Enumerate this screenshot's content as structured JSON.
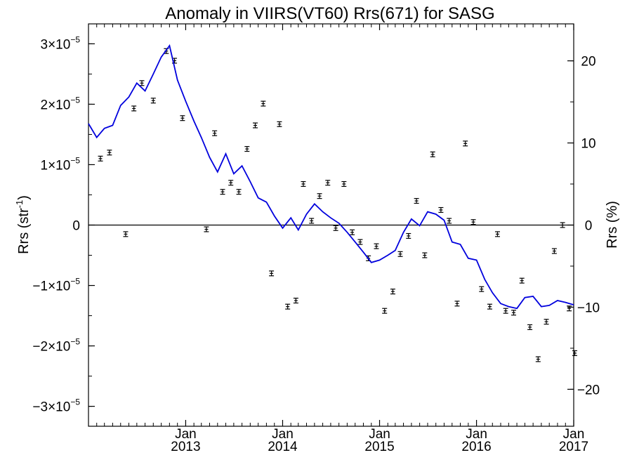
{
  "chart_data": {
    "type": "line",
    "title": "Anomaly in VIIRS(VT60) Rrs(671) for SASG",
    "ylabel": "Rrs (str",
    "ylabel_sup": "-1",
    "ylabel_close": ")",
    "y2label": "Rrs (%)",
    "xlim": [
      "2012-01-01",
      "2017-01-01"
    ],
    "ylim": [
      -3.33e-05,
      3.33e-05
    ],
    "y2lim": [
      -24.5,
      24.5
    ],
    "grid": false,
    "zero_line": true,
    "colors": {
      "model_line": "#0000dd",
      "observations": "#000000",
      "zero_line": "#000000"
    },
    "x_ticks": [
      {
        "date": "2013-01-01",
        "label_top": "Jan",
        "label_bottom": "2013"
      },
      {
        "date": "2014-01-01",
        "label_top": "Jan",
        "label_bottom": "2014"
      },
      {
        "date": "2015-01-01",
        "label_top": "Jan",
        "label_bottom": "2015"
      },
      {
        "date": "2016-01-01",
        "label_top": "Jan",
        "label_bottom": "2016"
      },
      {
        "date": "2017-01-01",
        "label_top": "Jan",
        "label_bottom": "2017"
      }
    ],
    "y_ticks": [
      {
        "value": 3e-05,
        "mantissa": "3×10",
        "exponent": "−5"
      },
      {
        "value": 2e-05,
        "mantissa": "2×10",
        "exponent": "−5"
      },
      {
        "value": 1e-05,
        "mantissa": "1×10",
        "exponent": "−5"
      },
      {
        "value": 0,
        "mantissa": "0",
        "exponent": ""
      },
      {
        "value": -1e-05,
        "mantissa": "−1×10",
        "exponent": "−5"
      },
      {
        "value": -2e-05,
        "mantissa": "−2×10",
        "exponent": "−5"
      },
      {
        "value": -3e-05,
        "mantissa": "−3×10",
        "exponent": "−5"
      }
    ],
    "y2_ticks": [
      {
        "value": 20,
        "label": "20"
      },
      {
        "value": 10,
        "label": "10"
      },
      {
        "value": 0,
        "label": "0"
      },
      {
        "value": -10,
        "label": "−10"
      },
      {
        "value": -20,
        "label": "−20"
      }
    ],
    "series": [
      {
        "kind": "line",
        "x": [
          "2012-01-01",
          "2012-02-01",
          "2012-03-01",
          "2012-04-01",
          "2012-05-01",
          "2012-06-01",
          "2012-07-01",
          "2012-08-01",
          "2012-09-01",
          "2012-10-01",
          "2012-11-01",
          "2012-12-01",
          "2013-01-01",
          "2013-02-01",
          "2013-03-01",
          "2013-04-01",
          "2013-05-01",
          "2013-06-01",
          "2013-07-01",
          "2013-08-01",
          "2013-09-01",
          "2013-10-01",
          "2013-11-01",
          "2013-12-01",
          "2014-01-01",
          "2014-02-01",
          "2014-03-01",
          "2014-04-01",
          "2014-05-01",
          "2014-06-01",
          "2014-07-01",
          "2014-08-01",
          "2014-09-01",
          "2014-10-01",
          "2014-11-01",
          "2014-12-01",
          "2015-01-01",
          "2015-02-01",
          "2015-03-01",
          "2015-04-01",
          "2015-05-01",
          "2015-06-01",
          "2015-07-01",
          "2015-08-01",
          "2015-09-01",
          "2015-10-01",
          "2015-11-01",
          "2015-12-01",
          "2016-01-01",
          "2016-02-01",
          "2016-03-01",
          "2016-04-01",
          "2016-05-01",
          "2016-06-01",
          "2016-07-01",
          "2016-08-01",
          "2016-09-01",
          "2016-10-01",
          "2016-11-01",
          "2016-12-01",
          "2017-01-01"
        ],
        "y": [
          1.68e-05,
          1.45e-05,
          1.6e-05,
          1.65e-05,
          1.98e-05,
          2.12e-05,
          2.35e-05,
          2.22e-05,
          2.5e-05,
          2.78e-05,
          2.97e-05,
          2.4e-05,
          2.05e-05,
          1.72e-05,
          1.45e-05,
          1.12e-05,
          8.8e-06,
          1.18e-05,
          8.5e-06,
          9.8e-06,
          7.2e-06,
          4.5e-06,
          3.8e-06,
          1.5e-06,
          -5e-07,
          1.2e-06,
          -8e-07,
          1.8e-06,
          3.5e-06,
          2.2e-06,
          1.2e-06,
          3e-07,
          -1.2e-06,
          -2.8e-06,
          -4.5e-06,
          -6.2e-06,
          -5.8e-06,
          -5e-06,
          -4.2e-06,
          -1.2e-06,
          1e-06,
          -1e-07,
          2.2e-06,
          1.8e-06,
          8e-07,
          -2.8e-06,
          -3.2e-06,
          -5.5e-06,
          -5.8e-06,
          -9e-06,
          -1.12e-05,
          -1.3e-05,
          -1.35e-05,
          -1.38e-05,
          -1.2e-05,
          -1.18e-05,
          -1.35e-05,
          -1.33e-05,
          -1.25e-05,
          -1.28e-05,
          -1.32e-05
        ]
      },
      {
        "kind": "errorbar",
        "x": [
          "2012-02-15",
          "2012-03-20",
          "2012-05-20",
          "2012-06-20",
          "2012-07-20",
          "2012-09-01",
          "2012-10-20",
          "2012-11-20",
          "2012-12-20",
          "2013-03-20",
          "2013-04-20",
          "2013-05-20",
          "2013-06-20",
          "2013-07-20",
          "2013-08-20",
          "2013-09-20",
          "2013-10-20",
          "2013-11-20",
          "2013-12-20",
          "2014-01-20",
          "2014-02-20",
          "2014-03-20",
          "2014-04-20",
          "2014-05-20",
          "2014-06-20",
          "2014-07-20",
          "2014-08-20",
          "2014-09-20",
          "2014-10-20",
          "2014-11-20",
          "2014-12-20",
          "2015-01-20",
          "2015-02-20",
          "2015-03-20",
          "2015-04-20",
          "2015-05-20",
          "2015-06-20",
          "2015-07-20",
          "2015-08-20",
          "2015-09-20",
          "2015-10-20",
          "2015-11-20",
          "2015-12-20",
          "2016-01-20",
          "2016-02-20",
          "2016-03-20",
          "2016-04-20",
          "2016-05-20",
          "2016-06-20",
          "2016-07-20",
          "2016-08-20",
          "2016-09-20",
          "2016-10-20",
          "2016-11-20",
          "2016-12-15",
          "2017-01-05"
        ],
        "y": [
          1.1e-05,
          1.2e-05,
          -1.5e-06,
          1.93e-05,
          2.35e-05,
          2.06e-05,
          2.88e-05,
          2.72e-05,
          1.77e-05,
          -7e-07,
          1.52e-05,
          5.5e-06,
          7e-06,
          5.5e-06,
          1.26e-05,
          1.65e-05,
          2.01e-05,
          -8e-06,
          1.67e-05,
          -1.35e-05,
          -1.25e-05,
          6.8e-06,
          7e-07,
          4.8e-06,
          7e-06,
          -5e-07,
          6.8e-06,
          -1.2e-06,
          -2.8e-06,
          -5.5e-06,
          -3.5e-06,
          -1.42e-05,
          -1.1e-05,
          -4.8e-06,
          -1.8e-06,
          4e-06,
          -5e-06,
          1.17e-05,
          2.5e-06,
          7e-07,
          -1.3e-05,
          1.35e-05,
          5e-07,
          -1.06e-05,
          -1.35e-05,
          -1.5e-06,
          -1.42e-05,
          -1.45e-05,
          -9.2e-06,
          -1.69e-05,
          -2.22e-05,
          -1.6e-05,
          -4.3e-06,
          0.0,
          -1.38e-05,
          -2.12e-05
        ],
        "error": 4e-07
      }
    ]
  }
}
